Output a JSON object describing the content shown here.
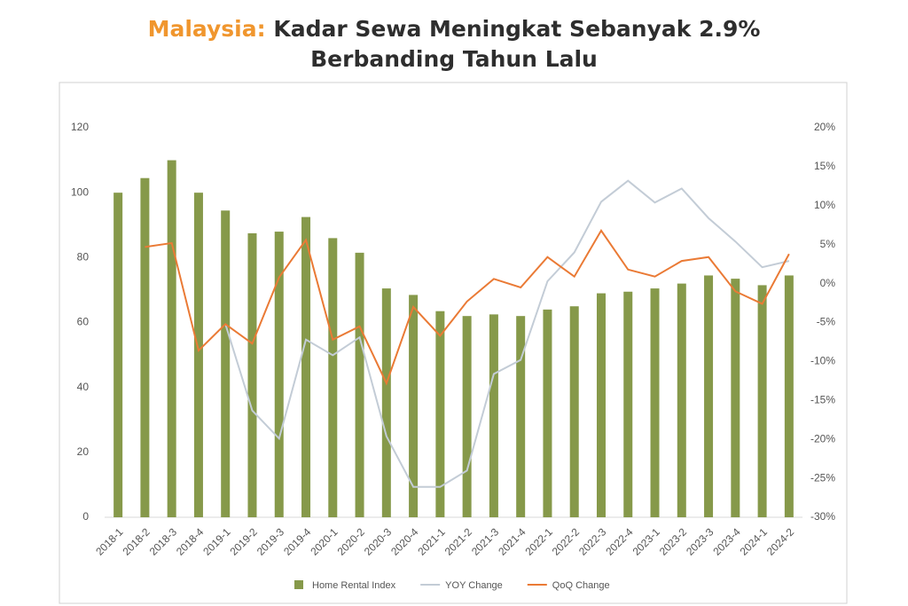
{
  "chart_data": {
    "type": "combo",
    "title_prefix": "Malaysia:",
    "title": "Kadar Sewa Meningkat Sebanyak 2.9% Berbanding Tahun Lalu",
    "categories": [
      "2018-1",
      "2018-2",
      "2018-3",
      "2018-4",
      "2019-1",
      "2019-2",
      "2019-3",
      "2019-4",
      "2020-1",
      "2020-2",
      "2020-3",
      "2020-4",
      "2021-1",
      "2021-2",
      "2021-3",
      "2021-4",
      "2022-1",
      "2022-2",
      "2022-3",
      "2022-4",
      "2023-1",
      "2023-2",
      "2023-3",
      "2023-4",
      "2024-1",
      "2024-2"
    ],
    "series": [
      {
        "name": "Home Rental Index",
        "type": "bar",
        "color": "#86994a",
        "values": [
          100,
          104.5,
          110,
          100,
          94.5,
          87.5,
          88,
          92.5,
          86,
          81.5,
          70.5,
          68.5,
          63.5,
          62,
          62.5,
          62,
          64,
          65,
          69,
          69.5,
          70.5,
          72,
          74.5,
          73.5,
          71.5,
          74.5
        ]
      },
      {
        "name": "YOY Change",
        "type": "line",
        "axis": "y2",
        "color": "#c3ccd6",
        "values": [
          null,
          null,
          null,
          null,
          -5.2,
          -16.3,
          -19.9,
          -7.2,
          -9.2,
          -6.9,
          -19.6,
          -26.1,
          -26.1,
          -24.0,
          -11.6,
          -9.8,
          0.3,
          4.0,
          10.5,
          13.2,
          10.4,
          12.2,
          8.4,
          5.4,
          2.1,
          2.9
        ]
      },
      {
        "name": "QoQ Change",
        "type": "line",
        "axis": "y2",
        "color": "#ea7a35",
        "values": [
          null,
          4.7,
          5.2,
          -8.6,
          -5.2,
          -7.7,
          0.8,
          5.6,
          -7.2,
          -5.5,
          -12.8,
          -3.0,
          -6.7,
          -2.3,
          0.6,
          -0.5,
          3.4,
          0.9,
          6.8,
          1.8,
          0.9,
          2.9,
          3.4,
          -1.0,
          -2.6,
          3.8
        ]
      }
    ],
    "ylim": [
      0,
      120
    ],
    "yticks": [
      0,
      20,
      40,
      60,
      80,
      100,
      120
    ],
    "y2lim": [
      -30,
      20
    ],
    "y2ticks": [
      {
        "value": -30,
        "label": "-30%"
      },
      {
        "value": -25,
        "label": "-25%"
      },
      {
        "value": -20,
        "label": "-20%"
      },
      {
        "value": -15,
        "label": "-15%"
      },
      {
        "value": -10,
        "label": "-10%"
      },
      {
        "value": -5,
        "label": "-5%"
      },
      {
        "value": 0,
        "label": "0%"
      },
      {
        "value": 5,
        "label": "5%"
      },
      {
        "value": 10,
        "label": "10%"
      },
      {
        "value": 15,
        "label": "15%"
      },
      {
        "value": 20,
        "label": "20%"
      }
    ],
    "legend": "bottom"
  }
}
